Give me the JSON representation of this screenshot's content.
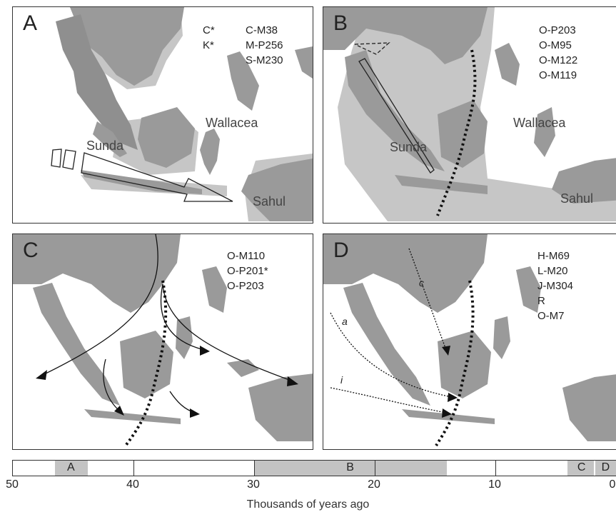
{
  "panels": {
    "A": {
      "letter": "A",
      "markers_col1": "C*\nK*",
      "markers_col2": "C-M38\nM-P256\nS-M230",
      "regions": {
        "sunda": "Sunda",
        "wallacea": "Wallacea",
        "sahul": "Sahul"
      }
    },
    "B": {
      "letter": "B",
      "markers": "O-P203\nO-M95\nO-M122\nO-M119",
      "regions": {
        "sunda": "Sunda",
        "wallacea": "Wallacea",
        "sahul": "Sahul"
      }
    },
    "C": {
      "letter": "C",
      "markers": "O-M110\nO-P201*\nO-P203"
    },
    "D": {
      "letter": "D",
      "markers": "H-M69\nL-M20\nJ-M304\nR\nO-M7",
      "route_labels": {
        "a": "a",
        "c": "c",
        "i": "i"
      }
    }
  },
  "timeline": {
    "axis_title": "Thousands of years ago",
    "ticks": [
      "50",
      "40",
      "30",
      "20",
      "10",
      "0"
    ],
    "periods": [
      {
        "label": "A",
        "from": 46.5,
        "to": 43.8
      },
      {
        "label": "B",
        "from": 30,
        "to": 14
      },
      {
        "label": "C",
        "from": 4,
        "to": 1.7
      },
      {
        "label": "D",
        "from": 1.7,
        "to": 0
      }
    ]
  },
  "colors": {
    "land": "#9a9a9a",
    "shelf": "#c6c6c6",
    "sea": "#ffffff",
    "outline": "#333333"
  }
}
